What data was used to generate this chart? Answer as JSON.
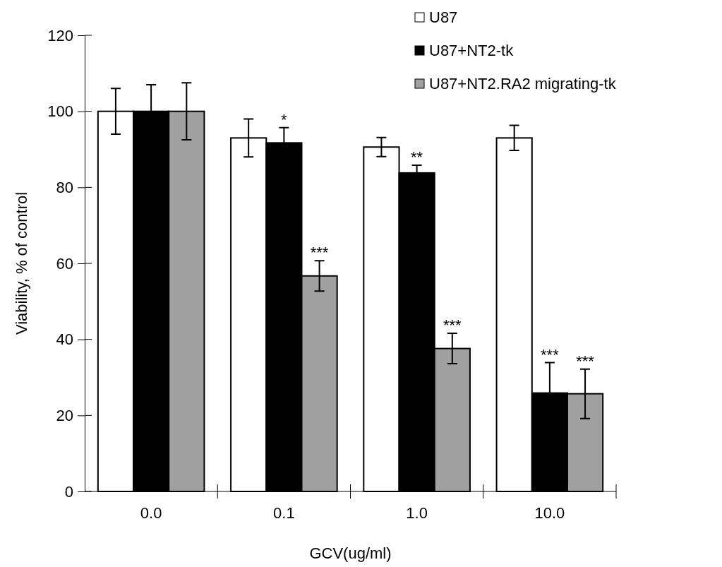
{
  "chart_data": {
    "type": "bar",
    "xlabel": "GCV(ug/ml)",
    "ylabel": "Viability, % of control",
    "categories": [
      "0.0",
      "0.1",
      "1.0",
      "10.0"
    ],
    "series": [
      {
        "name": "U87",
        "color": "#ffffff",
        "values": [
          100,
          93,
          90.6,
          93
        ],
        "errors": [
          6,
          5,
          2.5,
          3.3
        ]
      },
      {
        "name": "U87+NT2-tk",
        "color": "#000000",
        "values": [
          100,
          91.7,
          83.8,
          25.9
        ],
        "errors": [
          7,
          4,
          2,
          8
        ],
        "value_labels": [
          null,
          "*",
          "**",
          "***"
        ]
      },
      {
        "name": "U87+NT2.RA2 migrating-tk",
        "color": "#a0a0a0",
        "values": [
          100,
          56.7,
          37.6,
          25.7
        ],
        "errors": [
          7.5,
          4,
          4,
          6.5
        ],
        "value_labels": [
          null,
          "***",
          "***",
          "***"
        ]
      }
    ],
    "ylim": [
      0,
      120
    ],
    "yticks": [
      0,
      20,
      40,
      60,
      80,
      100,
      120
    ],
    "grid": false,
    "legend": "top right"
  }
}
